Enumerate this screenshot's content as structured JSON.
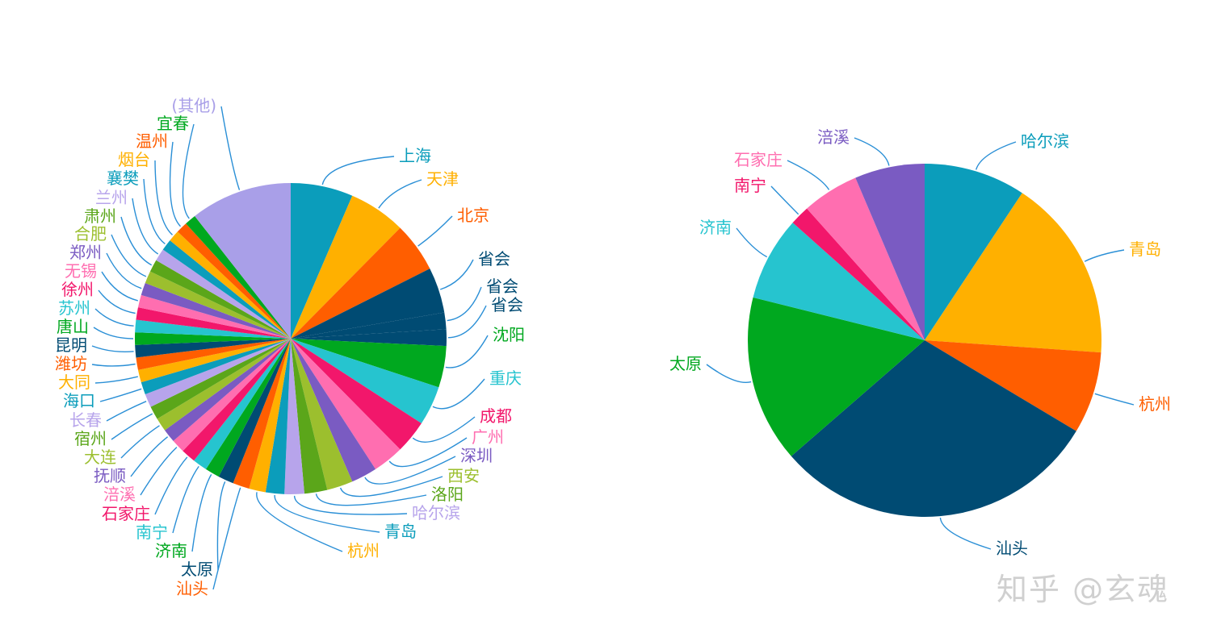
{
  "watermark": "知乎 @玄魂",
  "chart_data": [
    {
      "type": "pie",
      "slices": [
        {
          "label": "上海",
          "value": 6.0,
          "color": "#0B9DBB"
        },
        {
          "label": "天津",
          "value": 5.5,
          "color": "#FFB000"
        },
        {
          "label": "北京",
          "value": 4.8,
          "color": "#FF5E00"
        },
        {
          "label": "省会",
          "value": 4.4,
          "color": "#004B73"
        },
        {
          "label": "省会",
          "value": 1.6,
          "color": "#004B73"
        },
        {
          "label": "省会",
          "value": 1.6,
          "color": "#004B73"
        },
        {
          "label": "沈阳",
          "value": 4.0,
          "color": "#00A81F"
        },
        {
          "label": "重庆",
          "value": 3.8,
          "color": "#26C4CF"
        },
        {
          "label": "成都",
          "value": 3.2,
          "color": "#F2176B"
        },
        {
          "label": "广州",
          "value": 3.0,
          "color": "#FF6EB0"
        },
        {
          "label": "深圳",
          "value": 2.5,
          "color": "#7A5BC2"
        },
        {
          "label": "西安",
          "value": 2.5,
          "color": "#9CBF2E"
        },
        {
          "label": "洛阳",
          "value": 2.2,
          "color": "#5BA61A"
        },
        {
          "label": "哈尔滨",
          "value": 1.9,
          "color": "#B7A4EB"
        },
        {
          "label": "青岛",
          "value": 1.8,
          "color": "#0B9DBB"
        },
        {
          "label": "杭州",
          "value": 1.6,
          "color": "#FFB000"
        },
        {
          "label": "汕头",
          "value": 1.6,
          "color": "#FF5E00"
        },
        {
          "label": "太原",
          "value": 1.5,
          "color": "#004B73"
        },
        {
          "label": "济南",
          "value": 1.4,
          "color": "#00A81F"
        },
        {
          "label": "南宁",
          "value": 1.4,
          "color": "#26C4CF"
        },
        {
          "label": "石家庄",
          "value": 1.4,
          "color": "#F2176B"
        },
        {
          "label": "涪溪",
          "value": 1.3,
          "color": "#FF6EB0"
        },
        {
          "label": "抚顺",
          "value": 1.3,
          "color": "#7A5BC2"
        },
        {
          "label": "大连",
          "value": 1.3,
          "color": "#9CBF2E"
        },
        {
          "label": "宿州",
          "value": 1.3,
          "color": "#5BA61A"
        },
        {
          "label": "长春",
          "value": 1.3,
          "color": "#B7A4EB"
        },
        {
          "label": "海口",
          "value": 1.2,
          "color": "#0B9DBB"
        },
        {
          "label": "大同",
          "value": 1.2,
          "color": "#FFB000"
        },
        {
          "label": "潍坊",
          "value": 1.2,
          "color": "#FF5E00"
        },
        {
          "label": "昆明",
          "value": 1.2,
          "color": "#004B73"
        },
        {
          "label": "唐山",
          "value": 1.2,
          "color": "#00A81F"
        },
        {
          "label": "苏州",
          "value": 1.2,
          "color": "#26C4CF"
        },
        {
          "label": "徐州",
          "value": 1.2,
          "color": "#F2176B"
        },
        {
          "label": "无锡",
          "value": 1.2,
          "color": "#FF6EB0"
        },
        {
          "label": "郑州",
          "value": 1.2,
          "color": "#7A5BC2"
        },
        {
          "label": "合肥",
          "value": 1.2,
          "color": "#9CBF2E"
        },
        {
          "label": "肃州",
          "value": 1.2,
          "color": "#5BA61A"
        },
        {
          "label": "兰州",
          "value": 1.2,
          "color": "#B7A4EB"
        },
        {
          "label": "襄樊",
          "value": 1.1,
          "color": "#0B9DBB"
        },
        {
          "label": "烟台",
          "value": 1.1,
          "color": "#FFB000"
        },
        {
          "label": "温州",
          "value": 1.1,
          "color": "#FF5E00"
        },
        {
          "label": "宜春",
          "value": 1.1,
          "color": "#00A81F"
        },
        {
          "label": "(其他)",
          "value": 9.8,
          "color": "#A99FE8"
        }
      ]
    },
    {
      "type": "pie",
      "slices": [
        {
          "label": "哈尔滨",
          "value": 9.3,
          "color": "#0B9DBB"
        },
        {
          "label": "青岛",
          "value": 16.8,
          "color": "#FFB000"
        },
        {
          "label": "杭州",
          "value": 7.5,
          "color": "#FF5E00"
        },
        {
          "label": "汕头",
          "value": 30.0,
          "color": "#004B73"
        },
        {
          "label": "太原",
          "value": 15.3,
          "color": "#00A81F"
        },
        {
          "label": "济南",
          "value": 7.7,
          "color": "#26C4CF"
        },
        {
          "label": "南宁",
          "value": 1.8,
          "color": "#F2176B"
        },
        {
          "label": "石家庄",
          "value": 5.2,
          "color": "#FF6EB0"
        },
        {
          "label": "涪溪",
          "value": 6.4,
          "color": "#7A5BC2"
        }
      ]
    }
  ]
}
